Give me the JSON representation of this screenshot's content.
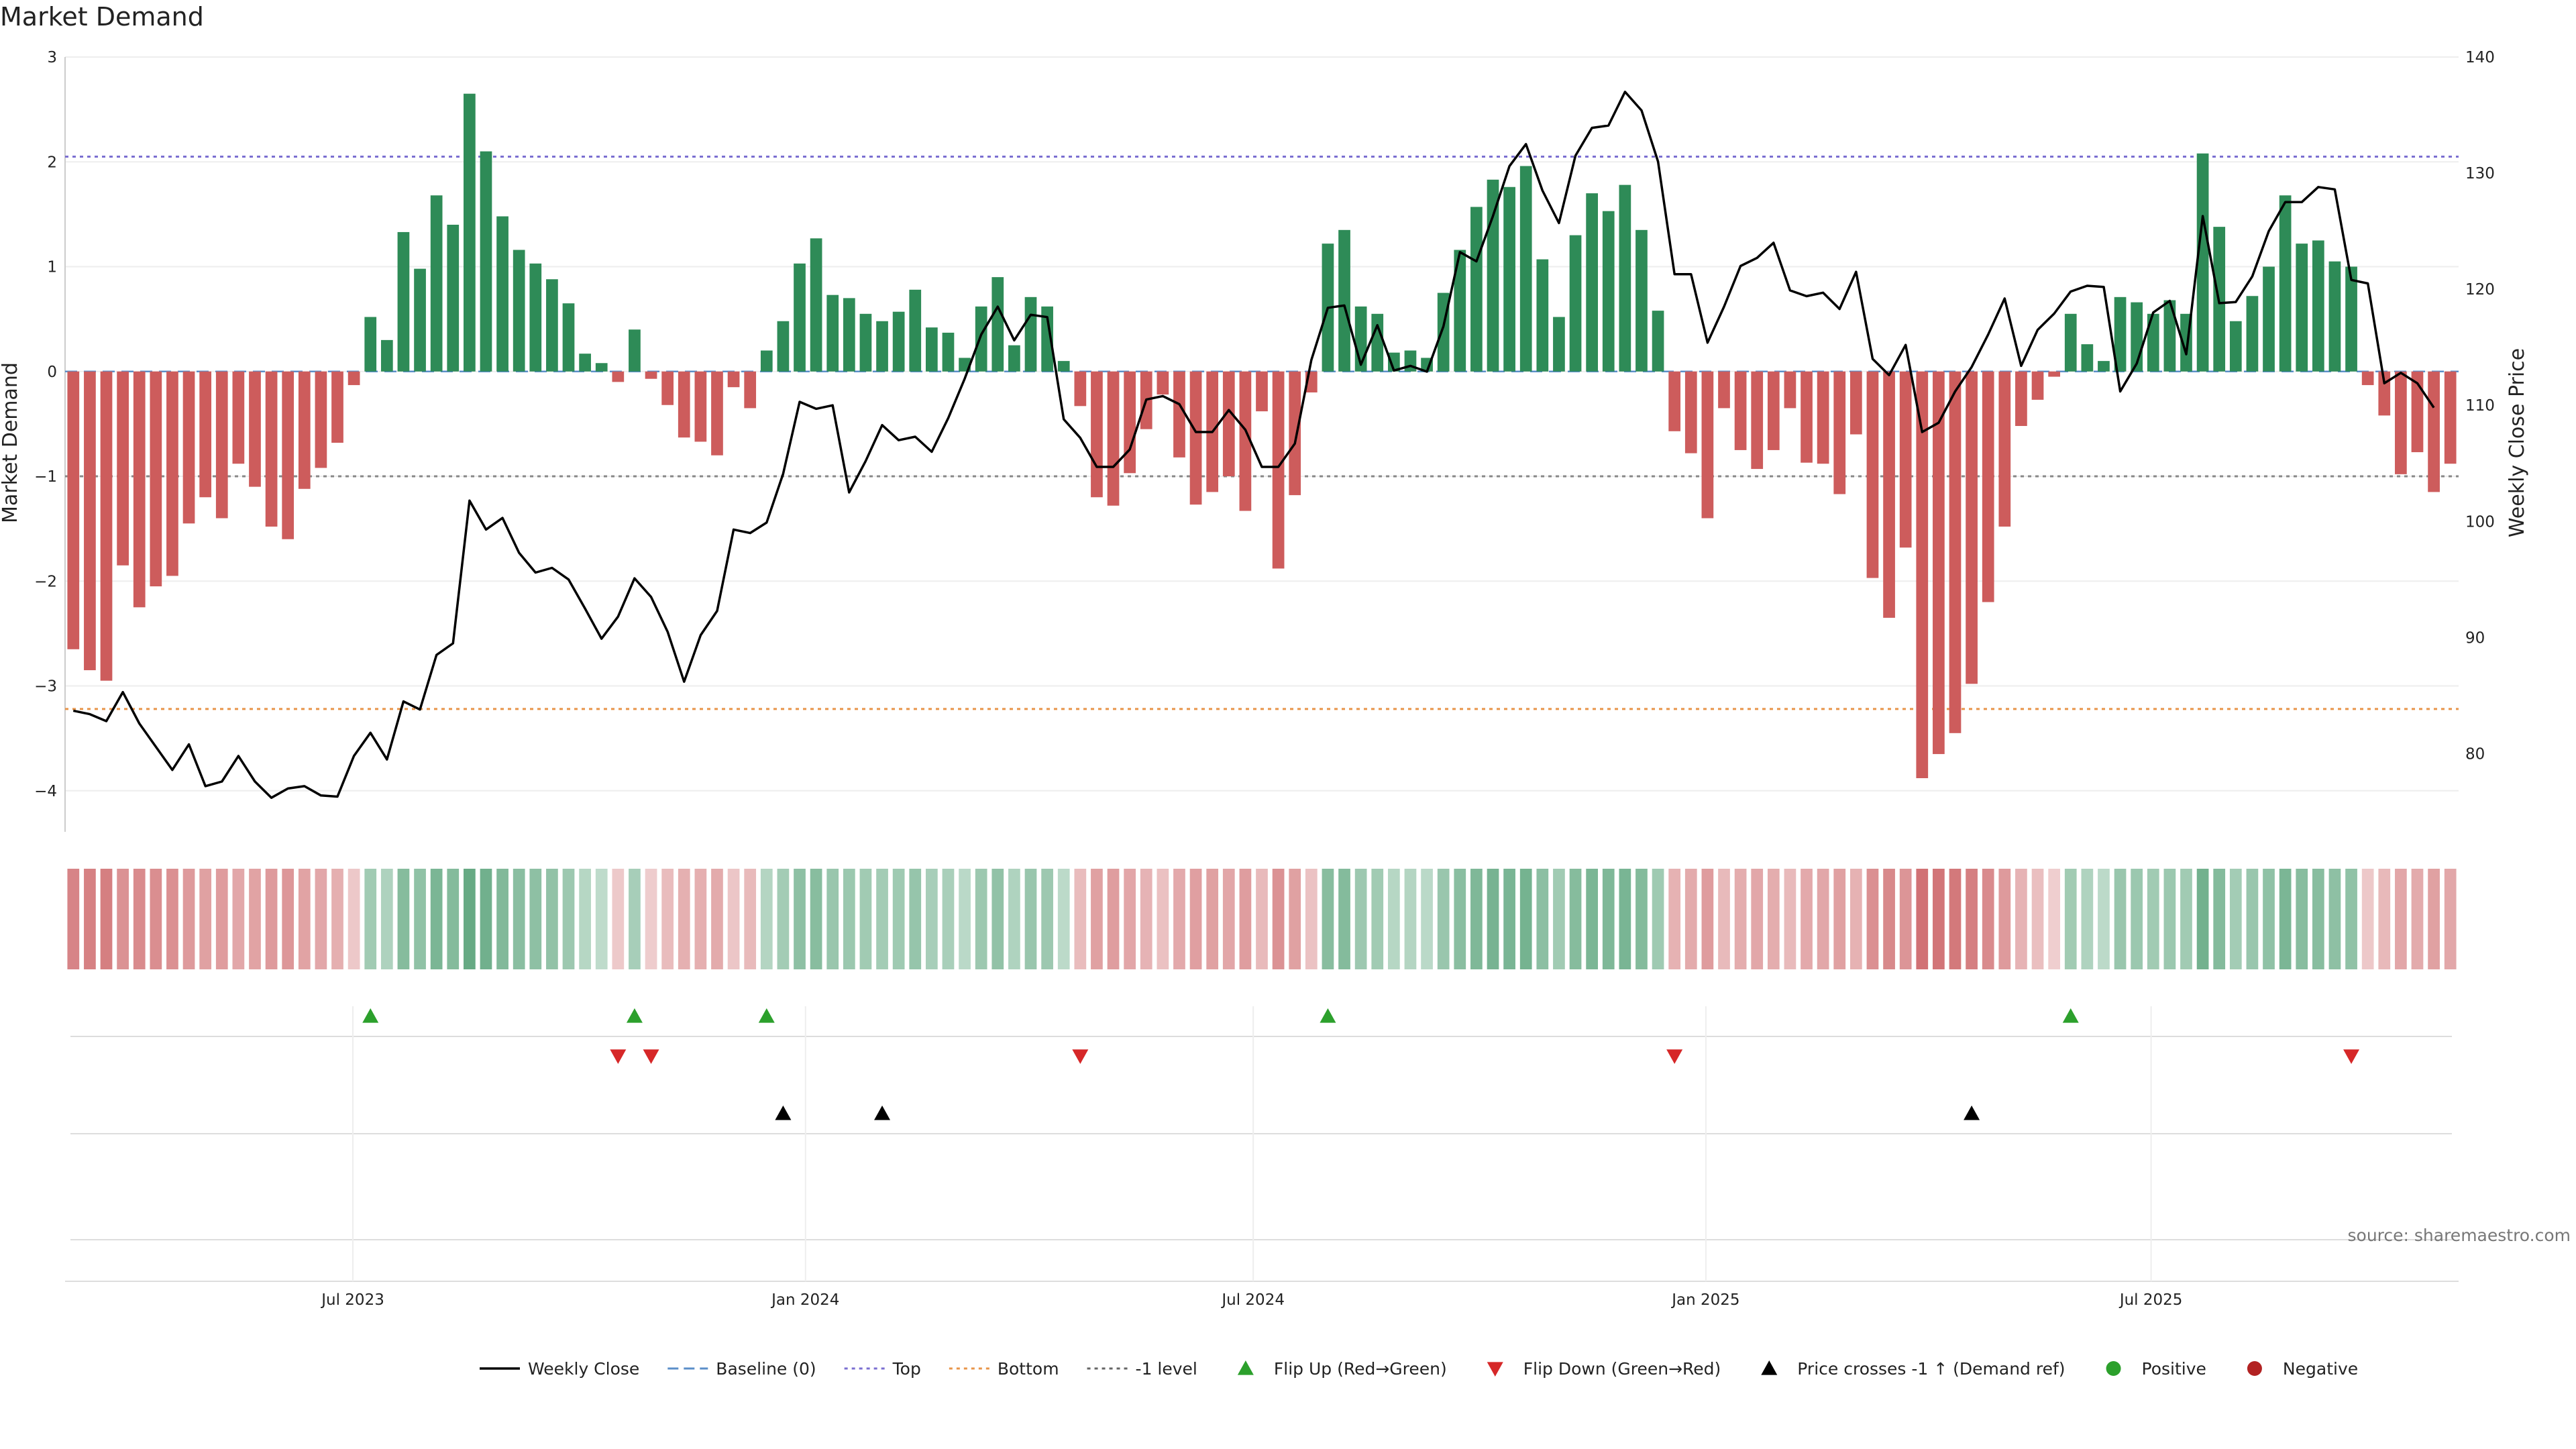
{
  "chart_data": {
    "type": "bar",
    "title": "Market Demand",
    "ylabel_left": "Market Demand",
    "ylabel_right": "Weekly Close Price",
    "ylim_left": [
      -4.2,
      3.0
    ],
    "ylim_right": [
      75,
      140
    ],
    "yticks_left": [
      3,
      2,
      1,
      0,
      -1,
      -2,
      -3,
      -4
    ],
    "yticks_left_labels": [
      "3",
      "2",
      "1",
      "0",
      "−1",
      "−2",
      "−3",
      "−4"
    ],
    "yticks_right": [
      140,
      130,
      120,
      110,
      100,
      90,
      80
    ],
    "x_start": "2023-03-06",
    "x_end": "2025-11-03",
    "xticks": [
      {
        "date": "2023-07-01",
        "label": "Jul 2023"
      },
      {
        "date": "2024-01-01",
        "label": "Jan 2024"
      },
      {
        "date": "2024-07-01",
        "label": "Jul 2024"
      },
      {
        "date": "2025-01-01",
        "label": "Jan 2025"
      },
      {
        "date": "2025-07-01",
        "label": "Jul 2025"
      }
    ],
    "reference_lines": [
      {
        "name": "Top",
        "value": 2.05,
        "color": "#7b6fd1"
      },
      {
        "name": "Bottom",
        "value": -3.22,
        "color": "#e8954a"
      },
      {
        "name": "-1 level",
        "value": -1.0,
        "color": "#888888"
      },
      {
        "name": "Baseline (0)",
        "value": 0,
        "color": "#5b8fc9"
      }
    ],
    "demand": [
      -2.65,
      -2.85,
      -2.95,
      -1.85,
      -2.25,
      -2.05,
      -1.95,
      -1.45,
      -1.2,
      -1.4,
      -0.88,
      -1.1,
      -1.48,
      -1.6,
      -1.12,
      -0.92,
      -0.68,
      -0.13,
      0.52,
      0.3,
      1.33,
      0.98,
      1.68,
      1.4,
      2.65,
      2.1,
      1.48,
      1.16,
      1.03,
      0.88,
      0.65,
      0.17,
      0.08,
      -0.1,
      0.4,
      -0.07,
      -0.32,
      -0.63,
      -0.67,
      -0.8,
      -0.15,
      -0.35,
      0.2,
      0.48,
      1.03,
      1.27,
      0.73,
      0.7,
      0.55,
      0.48,
      0.57,
      0.78,
      0.42,
      0.37,
      0.13,
      0.62,
      0.9,
      0.25,
      0.71,
      0.62,
      0.1,
      -0.33,
      -1.2,
      -1.28,
      -0.97,
      -0.55,
      -0.22,
      -0.82,
      -1.27,
      -1.15,
      -1.0,
      -1.33,
      -0.38,
      -1.88,
      -1.18,
      -0.2,
      1.22,
      1.35,
      0.62,
      0.55,
      0.18,
      0.2,
      0.13,
      0.75,
      1.16,
      1.57,
      1.83,
      1.76,
      1.96,
      1.07,
      0.52,
      1.3,
      1.7,
      1.53,
      1.78,
      1.35,
      0.58,
      -0.57,
      -0.78,
      -1.4,
      -0.35,
      -0.75,
      -0.93,
      -0.75,
      -0.35,
      -0.87,
      -0.88,
      -1.17,
      -0.6,
      -1.97,
      -2.35,
      -1.68,
      -3.88,
      -3.65,
      -3.45,
      -2.98,
      -2.2,
      -1.48,
      -0.52,
      -0.27,
      -0.05,
      0.55,
      0.26,
      0.1,
      0.71,
      0.66,
      0.55,
      0.68,
      0.55,
      2.08,
      1.38,
      0.48,
      0.72,
      1.0,
      1.68,
      1.22,
      1.25,
      1.05,
      1.0,
      -0.13,
      -0.42,
      -0.98,
      -0.77,
      -1.15,
      -0.88
    ],
    "price": [
      83.7,
      83.4,
      82.8,
      85.3,
      82.6,
      80.6,
      78.6,
      80.8,
      77.2,
      77.6,
      79.8,
      77.6,
      76.2,
      77.0,
      77.2,
      76.4,
      76.3,
      79.8,
      81.8,
      79.5,
      84.5,
      83.8,
      88.5,
      89.5,
      101.8,
      99.3,
      100.3,
      97.3,
      95.6,
      96.0,
      95.0,
      92.5,
      89.9,
      91.8,
      95.1,
      93.5,
      90.5,
      86.2,
      90.2,
      92.3,
      99.3,
      99.0,
      99.9,
      104.1,
      110.3,
      109.7,
      110.0,
      102.5,
      105.2,
      108.3,
      107.0,
      107.3,
      106.0,
      108.9,
      112.3,
      116.1,
      118.5,
      115.6,
      117.8,
      117.6,
      108.8,
      107.2,
      104.7,
      104.7,
      106.2,
      110.5,
      110.8,
      110.1,
      107.7,
      107.7,
      109.6,
      107.9,
      104.7,
      104.7,
      106.7,
      113.9,
      118.4,
      118.6,
      113.5,
      116.9,
      113.0,
      113.4,
      112.9,
      116.8,
      123.2,
      122.4,
      126.3,
      130.6,
      132.5,
      128.5,
      125.7,
      131.5,
      133.9,
      134.1,
      137.0,
      135.4,
      131.0,
      121.3,
      121.3,
      115.4,
      118.5,
      122.0,
      122.7,
      124.0,
      119.9,
      119.4,
      119.7,
      118.3,
      121.5,
      114.0,
      112.6,
      115.2,
      107.7,
      108.5,
      111.2,
      113.3,
      116.1,
      119.2,
      113.4,
      116.5,
      117.9,
      119.8,
      120.3,
      120.2,
      111.2,
      113.6,
      118.0,
      119.0,
      114.4,
      126.3,
      118.8,
      118.9,
      121.1,
      125.0,
      127.5,
      127.5,
      128.8,
      128.6,
      120.8,
      120.5,
      111.9,
      112.8,
      111.9,
      109.8
    ]
  },
  "markers": {
    "flip_up_idx": [
      18,
      34,
      42,
      76,
      121
    ],
    "flip_down_idx": [
      33,
      35,
      61,
      97,
      138
    ],
    "price_cross_idx": [
      43,
      49,
      115
    ]
  },
  "heat_strip": {
    "positive_color": "#2e8b57",
    "negative_color": "#c8575a"
  },
  "source": "source: sharemaestro.com",
  "legend": [
    {
      "label": "Weekly Close",
      "kind": "line",
      "color": "#000000"
    },
    {
      "label": "Baseline (0)",
      "kind": "dash",
      "color": "#5b8fc9"
    },
    {
      "label": "Top",
      "kind": "dot",
      "color": "#7b6fd1"
    },
    {
      "label": "Bottom",
      "kind": "dot",
      "color": "#e8954a"
    },
    {
      "label": "-1 level",
      "kind": "dot",
      "color": "#666666"
    },
    {
      "label": "Flip Up (Red→Green)",
      "kind": "tri-up",
      "color": "#2ca02c"
    },
    {
      "label": "Flip Down (Green→Red)",
      "kind": "tri-down",
      "color": "#d62728"
    },
    {
      "label": "Price crosses -1 ↑ (Demand ref)",
      "kind": "tri-up",
      "color": "#000000"
    },
    {
      "label": "Positive",
      "kind": "circle",
      "color": "#2ca02c"
    },
    {
      "label": "Negative",
      "kind": "circle",
      "color": "#b22222"
    }
  ]
}
